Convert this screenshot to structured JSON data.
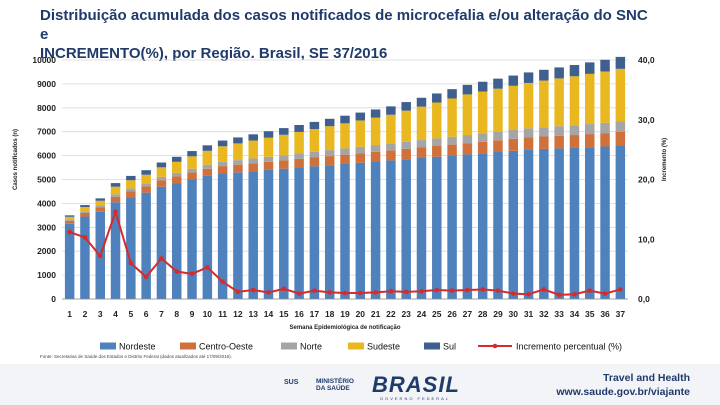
{
  "slide": {
    "title_line1": "Distribuição acumulada dos casos notificados de microcefalia e/ou alteração do SNC e",
    "title_line2": "INCREMENTO(%), por Região. Brasil, SE 37/2016",
    "source": "Fonte: Secretarias de Saúde dos Estados e Distrito Federal (dados atualizados até 17/09/2016).",
    "brand_line1": "Travel and Health",
    "brand_line2": "www.saude.gov.br/viajante",
    "logo_sus": "SUS",
    "logo_ms_line1": "MINISTÉRIO",
    "logo_ms_line2": "DA SAÚDE",
    "logo_brasil": "BRASIL",
    "logo_brasil_sub": "GOVERNO FEDERAL"
  },
  "chart_data": {
    "type": "bar",
    "stacked": true,
    "xlabel": "Semana Epidemiológica de notificação",
    "ylabel": "Casos notificados (n)",
    "y2label": "Incremento (%)",
    "ylim": [
      0,
      10000
    ],
    "y2lim": [
      0,
      40
    ],
    "yticks": [
      "0",
      "1000",
      "2000",
      "3000",
      "4000",
      "5000",
      "6000",
      "7000",
      "8000",
      "9000",
      "10000"
    ],
    "y2ticks": [
      "0,0",
      "10,0",
      "20,0",
      "30,0",
      "40,0"
    ],
    "categories": [
      "1",
      "2",
      "3",
      "4",
      "5",
      "6",
      "7",
      "8",
      "9",
      "10",
      "11",
      "12",
      "13",
      "14",
      "15",
      "16",
      "17",
      "18",
      "19",
      "20",
      "21",
      "22",
      "23",
      "24",
      "25",
      "26",
      "27",
      "28",
      "29",
      "30",
      "31",
      "32",
      "33",
      "34",
      "35",
      "36",
      "37"
    ],
    "colors": {
      "Nordeste": "#4f81bd",
      "Centro-Oeste": "#d0703a",
      "Norte": "#a5a5a5",
      "Sudeste": "#e9b820",
      "Sul": "#3f5f8f",
      "line": "#d62b2b"
    },
    "series": [
      {
        "name": "Nordeste",
        "values": [
          3150,
          3450,
          3650,
          4050,
          4250,
          4450,
          4700,
          4850,
          5000,
          5150,
          5250,
          5300,
          5350,
          5400,
          5450,
          5500,
          5550,
          5600,
          5650,
          5700,
          5750,
          5800,
          5850,
          5900,
          5950,
          6000,
          6050,
          6100,
          6150,
          6200,
          6250,
          6280,
          6300,
          6320,
          6350,
          6380,
          6420
        ]
      },
      {
        "name": "Centro-Oeste",
        "values": [
          120,
          150,
          180,
          220,
          250,
          260,
          270,
          280,
          290,
          300,
          310,
          320,
          330,
          340,
          350,
          360,
          370,
          380,
          390,
          400,
          410,
          420,
          430,
          440,
          450,
          460,
          470,
          480,
          490,
          500,
          510,
          520,
          530,
          540,
          550,
          560,
          570
        ]
      },
      {
        "name": "Norte",
        "values": [
          60,
          70,
          80,
          110,
          120,
          130,
          140,
          150,
          160,
          170,
          180,
          190,
          200,
          210,
          220,
          230,
          240,
          250,
          260,
          270,
          280,
          290,
          300,
          310,
          320,
          330,
          340,
          350,
          360,
          370,
          380,
          390,
          400,
          410,
          420,
          430,
          440
        ]
      },
      {
        "name": "Sudeste",
        "values": [
          110,
          180,
          200,
          320,
          350,
          360,
          400,
          460,
          520,
          580,
          650,
          700,
          750,
          800,
          850,
          900,
          950,
          1000,
          1050,
          1100,
          1150,
          1200,
          1300,
          1400,
          1500,
          1600,
          1700,
          1750,
          1800,
          1850,
          1900,
          1950,
          2000,
          2050,
          2100,
          2150,
          2200
        ]
      },
      {
        "name": "Sul",
        "values": [
          60,
          80,
          100,
          150,
          180,
          190,
          200,
          210,
          220,
          230,
          240,
          250,
          260,
          270,
          280,
          290,
          300,
          310,
          320,
          330,
          340,
          350,
          360,
          370,
          380,
          390,
          400,
          410,
          420,
          430,
          440,
          450,
          460,
          470,
          480,
          490,
          500
        ]
      }
    ],
    "line_series": {
      "name": "Incremento percentual (%)",
      "axis": "y2",
      "values": [
        11.2,
        10.3,
        7.2,
        14.6,
        6,
        3.7,
        6.8,
        4.6,
        4.2,
        5.3,
        2.9,
        1.2,
        1.5,
        1.1,
        1.7,
        0.9,
        1.4,
        1.1,
        1.0,
        1.0,
        1.1,
        1.3,
        1.2,
        1.3,
        1.5,
        1.4,
        1.5,
        1.6,
        1.4,
        0.9,
        0.8,
        1.6,
        0.7,
        0.8,
        1.4,
        0.9,
        1.6
      ]
    },
    "legend": [
      "Nordeste",
      "Centro-Oeste",
      "Norte",
      "Sudeste",
      "Sul",
      "Incremento percentual (%)"
    ],
    "legend_position": "bottom"
  }
}
